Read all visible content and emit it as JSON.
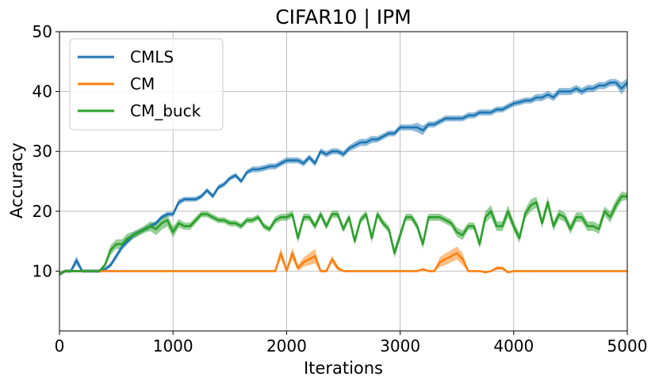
{
  "chart_data": {
    "type": "line",
    "title": "CIFAR10 | IPM",
    "xlabel": "Iterations",
    "ylabel": "Accuracy",
    "xlim": [
      0,
      5000
    ],
    "ylim": [
      0,
      50
    ],
    "xticks": [
      0,
      1000,
      2000,
      3000,
      4000,
      5000
    ],
    "yticks": [
      10,
      20,
      30,
      40,
      50
    ],
    "grid": true,
    "legend_position": "upper-left",
    "colors": {
      "CMLS": "#1f77b4",
      "CM": "#ff7f0e",
      "CM_buck": "#2ca02c"
    },
    "series": [
      {
        "name": "CMLS",
        "x": [
          0,
          50,
          100,
          150,
          200,
          250,
          300,
          350,
          400,
          450,
          500,
          550,
          600,
          650,
          700,
          750,
          800,
          850,
          900,
          950,
          1000,
          1050,
          1100,
          1150,
          1200,
          1250,
          1300,
          1350,
          1400,
          1450,
          1500,
          1550,
          1600,
          1650,
          1700,
          1750,
          1800,
          1850,
          1900,
          1950,
          2000,
          2050,
          2100,
          2150,
          2200,
          2250,
          2300,
          2350,
          2400,
          2450,
          2500,
          2550,
          2600,
          2650,
          2700,
          2750,
          2800,
          2850,
          2900,
          2950,
          3000,
          3050,
          3100,
          3150,
          3200,
          3250,
          3300,
          3350,
          3400,
          3450,
          3500,
          3550,
          3600,
          3650,
          3700,
          3750,
          3800,
          3850,
          3900,
          3950,
          4000,
          4050,
          4100,
          4150,
          4200,
          4250,
          4300,
          4350,
          4400,
          4450,
          4500,
          4550,
          4600,
          4650,
          4700,
          4750,
          4800,
          4850,
          4900,
          4950,
          5000
        ],
        "y": [
          9.5,
          10,
          10,
          11.8,
          10,
          10,
          10,
          10,
          10.3,
          11,
          12.5,
          14,
          15,
          16,
          16.5,
          17,
          17.5,
          18,
          19,
          19.5,
          19.5,
          21.5,
          22,
          22,
          22,
          22.5,
          23.5,
          22.5,
          24,
          24.5,
          25.5,
          26,
          25,
          26.5,
          27,
          27,
          27.2,
          27.5,
          27.5,
          28,
          28.5,
          28.5,
          28.5,
          28,
          29,
          28,
          30,
          29.5,
          30,
          30,
          29.5,
          30.5,
          31,
          31.5,
          31.5,
          32,
          32,
          32.5,
          33,
          33,
          34,
          34,
          34,
          34,
          33.5,
          34.5,
          34.5,
          35,
          35.5,
          35.5,
          35.5,
          35.5,
          36,
          36,
          36.5,
          36.5,
          36.5,
          37,
          37,
          37.5,
          38,
          38.2,
          38.5,
          38.5,
          39,
          39,
          39.5,
          39,
          40,
          40,
          40,
          40.5,
          40,
          40.5,
          40.5,
          41,
          41,
          41.5,
          41.5,
          40.5,
          41.5
        ],
        "band": [
          0.3,
          0.3,
          0.3,
          0.7,
          0.3,
          0.3,
          0.3,
          0.3,
          0.3,
          0.4,
          0.5,
          0.5,
          0.5,
          0.5,
          0.4,
          0.4,
          0.4,
          0.4,
          0.4,
          0.4,
          0.4,
          0.5,
          0.4,
          0.4,
          0.4,
          0.4,
          0.4,
          0.4,
          0.4,
          0.4,
          0.4,
          0.4,
          0.4,
          0.4,
          0.5,
          0.5,
          0.5,
          0.5,
          0.5,
          0.5,
          0.5,
          0.5,
          0.5,
          0.5,
          0.5,
          0.5,
          0.5,
          0.5,
          0.5,
          0.5,
          0.5,
          0.5,
          0.6,
          0.6,
          0.6,
          0.6,
          0.5,
          0.5,
          0.5,
          0.5,
          0.5,
          0.5,
          0.5,
          0.8,
          0.8,
          0.5,
          0.5,
          0.5,
          0.5,
          0.5,
          0.5,
          0.5,
          0.5,
          0.5,
          0.5,
          0.5,
          0.5,
          0.5,
          0.5,
          0.5,
          0.5,
          0.5,
          0.5,
          0.5,
          0.6,
          0.6,
          0.6,
          0.6,
          0.6,
          0.6,
          0.6,
          0.6,
          0.6,
          0.6,
          0.6,
          0.6,
          0.6,
          0.6,
          0.6,
          1.0,
          0.7
        ]
      },
      {
        "name": "CM",
        "x": [
          0,
          50,
          100,
          150,
          200,
          250,
          300,
          350,
          400,
          450,
          500,
          550,
          600,
          650,
          700,
          750,
          800,
          850,
          900,
          950,
          1000,
          1050,
          1100,
          1150,
          1200,
          1250,
          1300,
          1350,
          1400,
          1450,
          1500,
          1550,
          1600,
          1650,
          1700,
          1750,
          1800,
          1850,
          1900,
          1950,
          2000,
          2050,
          2100,
          2150,
          2200,
          2250,
          2300,
          2350,
          2400,
          2450,
          2500,
          2550,
          2600,
          2650,
          2700,
          2750,
          2800,
          2850,
          2900,
          2950,
          3000,
          3050,
          3100,
          3150,
          3200,
          3250,
          3300,
          3350,
          3400,
          3450,
          3500,
          3550,
          3600,
          3650,
          3700,
          3750,
          3800,
          3850,
          3900,
          3950,
          4000,
          4050,
          4100,
          4150,
          4200,
          4250,
          4300,
          4350,
          4400,
          4450,
          4500,
          4550,
          4600,
          4650,
          4700,
          4750,
          4800,
          4850,
          4900,
          4950,
          5000
        ],
        "y": [
          9.5,
          10,
          10,
          10,
          10,
          10,
          10,
          10,
          10,
          10,
          10,
          10,
          10,
          10,
          10,
          10,
          10,
          10,
          10,
          10,
          10,
          10,
          10,
          10,
          10,
          10,
          10,
          10,
          10,
          10,
          10,
          10,
          10,
          10,
          10,
          10,
          10,
          10,
          10,
          13,
          10,
          13,
          10.5,
          11.5,
          12,
          12.5,
          10,
          10,
          12,
          10.5,
          10,
          10,
          10,
          10,
          10,
          10,
          10,
          10,
          10,
          10,
          10,
          10,
          10,
          10,
          10.3,
          10,
          10,
          11.5,
          12,
          12.5,
          13,
          12,
          10,
          10,
          10,
          9.8,
          10,
          10.5,
          10.5,
          9.8,
          10,
          10,
          10,
          10,
          10,
          10,
          10,
          10,
          10,
          10,
          10,
          10,
          10,
          10,
          10,
          10,
          10,
          10,
          10,
          10,
          10
        ],
        "band": [
          0.3,
          0.1,
          0.1,
          0.1,
          0.1,
          0.1,
          0.1,
          0.1,
          0.1,
          0.1,
          0.1,
          0.1,
          0.1,
          0.1,
          0.1,
          0.1,
          0.1,
          0.1,
          0.1,
          0.1,
          0.1,
          0.1,
          0.1,
          0.1,
          0.1,
          0.1,
          0.1,
          0.1,
          0.1,
          0.1,
          0.1,
          0.1,
          0.1,
          0.1,
          0.1,
          0.1,
          0.1,
          0.1,
          0.1,
          1.0,
          0.1,
          1.0,
          0.5,
          0.8,
          1.0,
          1.2,
          0.2,
          0.2,
          0.6,
          0.4,
          0.1,
          0.1,
          0.1,
          0.1,
          0.1,
          0.1,
          0.1,
          0.1,
          0.1,
          0.1,
          0.1,
          0.1,
          0.1,
          0.1,
          0.2,
          0.1,
          0.1,
          0.8,
          1.0,
          1.0,
          1.1,
          1.0,
          0.1,
          0.1,
          0.1,
          0.2,
          0.1,
          0.3,
          0.3,
          0.2,
          0.1,
          0.1,
          0.1,
          0.1,
          0.1,
          0.1,
          0.1,
          0.1,
          0.1,
          0.1,
          0.1,
          0.1,
          0.1,
          0.1,
          0.1,
          0.1,
          0.1,
          0.1,
          0.1,
          0.1,
          0.1
        ]
      },
      {
        "name": "CM_buck",
        "x": [
          0,
          50,
          100,
          150,
          200,
          250,
          300,
          350,
          400,
          450,
          500,
          550,
          600,
          650,
          700,
          750,
          800,
          850,
          900,
          950,
          1000,
          1050,
          1100,
          1150,
          1200,
          1250,
          1300,
          1350,
          1400,
          1450,
          1500,
          1550,
          1600,
          1650,
          1700,
          1750,
          1800,
          1850,
          1900,
          1950,
          2000,
          2050,
          2100,
          2150,
          2200,
          2250,
          2300,
          2350,
          2400,
          2450,
          2500,
          2550,
          2600,
          2650,
          2700,
          2750,
          2800,
          2850,
          2900,
          2950,
          3000,
          3050,
          3100,
          3150,
          3200,
          3250,
          3300,
          3350,
          3400,
          3450,
          3500,
          3550,
          3600,
          3650,
          3700,
          3750,
          3800,
          3850,
          3900,
          3950,
          4000,
          4050,
          4100,
          4150,
          4200,
          4250,
          4300,
          4350,
          4400,
          4450,
          4500,
          4550,
          4600,
          4650,
          4700,
          4750,
          4800,
          4850,
          4900,
          4950,
          5000
        ],
        "y": [
          9.5,
          10,
          10,
          10,
          10,
          10,
          10,
          10,
          11,
          13.5,
          14.5,
          14.5,
          15.5,
          16,
          16.5,
          17,
          17.5,
          17,
          18,
          18.5,
          16.5,
          18,
          17.5,
          17.5,
          18.5,
          19.5,
          19.5,
          19,
          18.5,
          18.5,
          18,
          18,
          17.5,
          18.5,
          18.5,
          19,
          17.5,
          17,
          18.5,
          19,
          19,
          19.5,
          15.5,
          19,
          19,
          17.5,
          19.5,
          17.5,
          19.5,
          19.5,
          17,
          19,
          15,
          18.5,
          19.5,
          15.5,
          19.5,
          18,
          17,
          13,
          16,
          19,
          19,
          17.5,
          14.5,
          19,
          19,
          19,
          18.5,
          18,
          16.5,
          16,
          17.5,
          17.5,
          14.5,
          19,
          20,
          17.5,
          17.5,
          20,
          17.5,
          15.5,
          19.5,
          21,
          21.5,
          18,
          21.5,
          17.5,
          19.5,
          19,
          17,
          19,
          19,
          17.5,
          17.5,
          17,
          20,
          19,
          21,
          22.5,
          22.5
        ],
        "band": [
          0.3,
          0.2,
          0.2,
          0.2,
          0.2,
          0.2,
          0.2,
          0.2,
          0.4,
          0.8,
          0.8,
          0.8,
          0.8,
          0.6,
          0.6,
          0.6,
          0.8,
          1.0,
          1.1,
          1.0,
          0.9,
          0.7,
          0.6,
          0.6,
          0.6,
          0.5,
          0.5,
          0.5,
          0.5,
          0.5,
          0.5,
          0.5,
          0.5,
          0.5,
          0.5,
          0.5,
          0.5,
          0.5,
          0.6,
          0.6,
          0.6,
          0.6,
          0.8,
          0.6,
          0.6,
          0.6,
          0.6,
          0.6,
          0.6,
          0.6,
          0.6,
          0.6,
          0.8,
          0.6,
          0.6,
          0.8,
          0.6,
          0.6,
          0.6,
          0.8,
          0.8,
          0.6,
          0.6,
          0.6,
          0.8,
          0.6,
          0.6,
          0.6,
          0.6,
          0.6,
          0.8,
          0.8,
          0.6,
          0.6,
          0.8,
          1.0,
          1.0,
          0.8,
          0.8,
          1.0,
          0.8,
          0.8,
          0.8,
          1.0,
          0.9,
          0.8,
          0.9,
          0.8,
          0.8,
          0.8,
          0.8,
          0.8,
          0.8,
          0.8,
          0.8,
          0.8,
          0.8,
          0.9,
          0.9,
          0.8,
          0.6
        ]
      }
    ]
  }
}
